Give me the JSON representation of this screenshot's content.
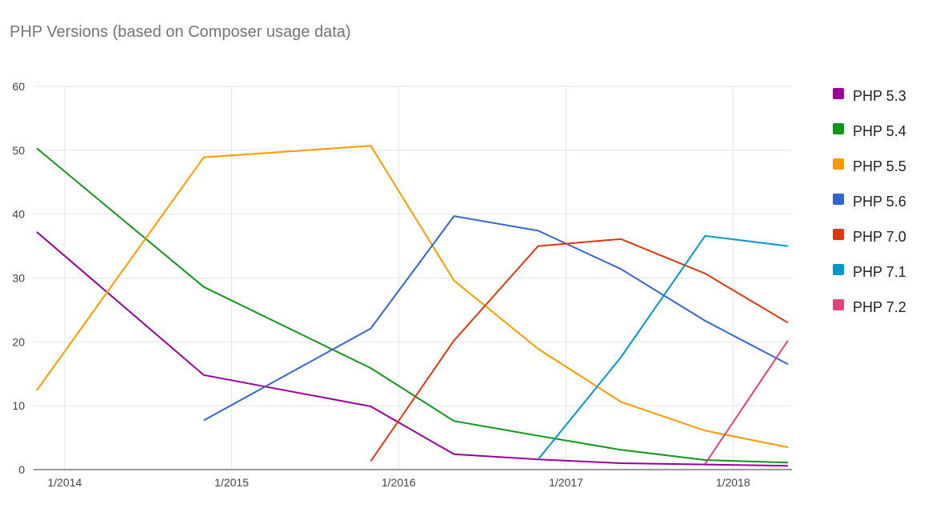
{
  "chart_data": {
    "type": "line",
    "title": "PHP Versions (based on Composer usage data)",
    "xlabel": "",
    "ylabel": "",
    "ylim": [
      0,
      60
    ],
    "yticks": [
      0,
      10,
      20,
      30,
      40,
      50,
      60
    ],
    "xlim": [
      "2013-10-25",
      "2018-05-10"
    ],
    "xticks": [
      {
        "label": "1/2014",
        "date": "2014-01-01"
      },
      {
        "label": "1/2015",
        "date": "2015-01-01"
      },
      {
        "label": "1/2016",
        "date": "2016-01-01"
      },
      {
        "label": "1/2017",
        "date": "2017-01-01"
      },
      {
        "label": "1/2018",
        "date": "2018-01-01"
      }
    ],
    "grid": true,
    "legend_position": "right",
    "series": [
      {
        "name": "PHP 5.3",
        "color": "#990099",
        "points": [
          [
            "2013-11-01",
            37.2
          ],
          [
            "2014-11-01",
            14.8
          ],
          [
            "2015-11-01",
            9.9
          ],
          [
            "2016-05-01",
            2.4
          ],
          [
            "2016-11-01",
            1.6
          ],
          [
            "2017-05-01",
            1.0
          ],
          [
            "2017-11-01",
            0.8
          ],
          [
            "2018-05-01",
            0.6
          ]
        ]
      },
      {
        "name": "PHP 5.4",
        "color": "#109618",
        "points": [
          [
            "2013-11-01",
            50.3
          ],
          [
            "2014-11-01",
            28.6
          ],
          [
            "2015-11-01",
            15.9
          ],
          [
            "2016-05-01",
            7.6
          ],
          [
            "2016-11-01",
            5.3
          ],
          [
            "2017-05-01",
            3.1
          ],
          [
            "2017-11-01",
            1.5
          ],
          [
            "2018-05-01",
            1.1
          ]
        ]
      },
      {
        "name": "PHP 5.5",
        "color": "#FF9900",
        "points": [
          [
            "2013-11-01",
            12.4
          ],
          [
            "2014-11-01",
            48.9
          ],
          [
            "2015-11-01",
            50.7
          ],
          [
            "2016-05-01",
            29.6
          ],
          [
            "2016-11-01",
            18.9
          ],
          [
            "2017-05-01",
            10.6
          ],
          [
            "2017-11-01",
            6.1
          ],
          [
            "2018-05-01",
            3.5
          ]
        ]
      },
      {
        "name": "PHP 5.6",
        "color": "#3366CC",
        "points": [
          [
            "2014-11-01",
            7.7
          ],
          [
            "2015-11-01",
            22.1
          ],
          [
            "2016-05-01",
            39.7
          ],
          [
            "2016-11-01",
            37.4
          ],
          [
            "2017-05-01",
            31.4
          ],
          [
            "2017-11-01",
            23.3
          ],
          [
            "2018-05-01",
            16.5
          ]
        ]
      },
      {
        "name": "PHP 7.0",
        "color": "#DC3912",
        "points": [
          [
            "2015-11-01",
            1.3
          ],
          [
            "2016-05-01",
            20.2
          ],
          [
            "2016-11-01",
            35.0
          ],
          [
            "2017-05-01",
            36.1
          ],
          [
            "2017-11-01",
            30.7
          ],
          [
            "2018-05-01",
            23.0
          ]
        ]
      },
      {
        "name": "PHP 7.1",
        "color": "#0099C6",
        "points": [
          [
            "2016-11-01",
            1.6
          ],
          [
            "2017-05-01",
            17.6
          ],
          [
            "2017-11-01",
            36.6
          ],
          [
            "2018-05-01",
            35.0
          ]
        ]
      },
      {
        "name": "PHP 7.2",
        "color": "#DD4477",
        "points": [
          [
            "2017-11-01",
            0.9
          ],
          [
            "2018-05-01",
            20.2
          ]
        ]
      }
    ]
  }
}
